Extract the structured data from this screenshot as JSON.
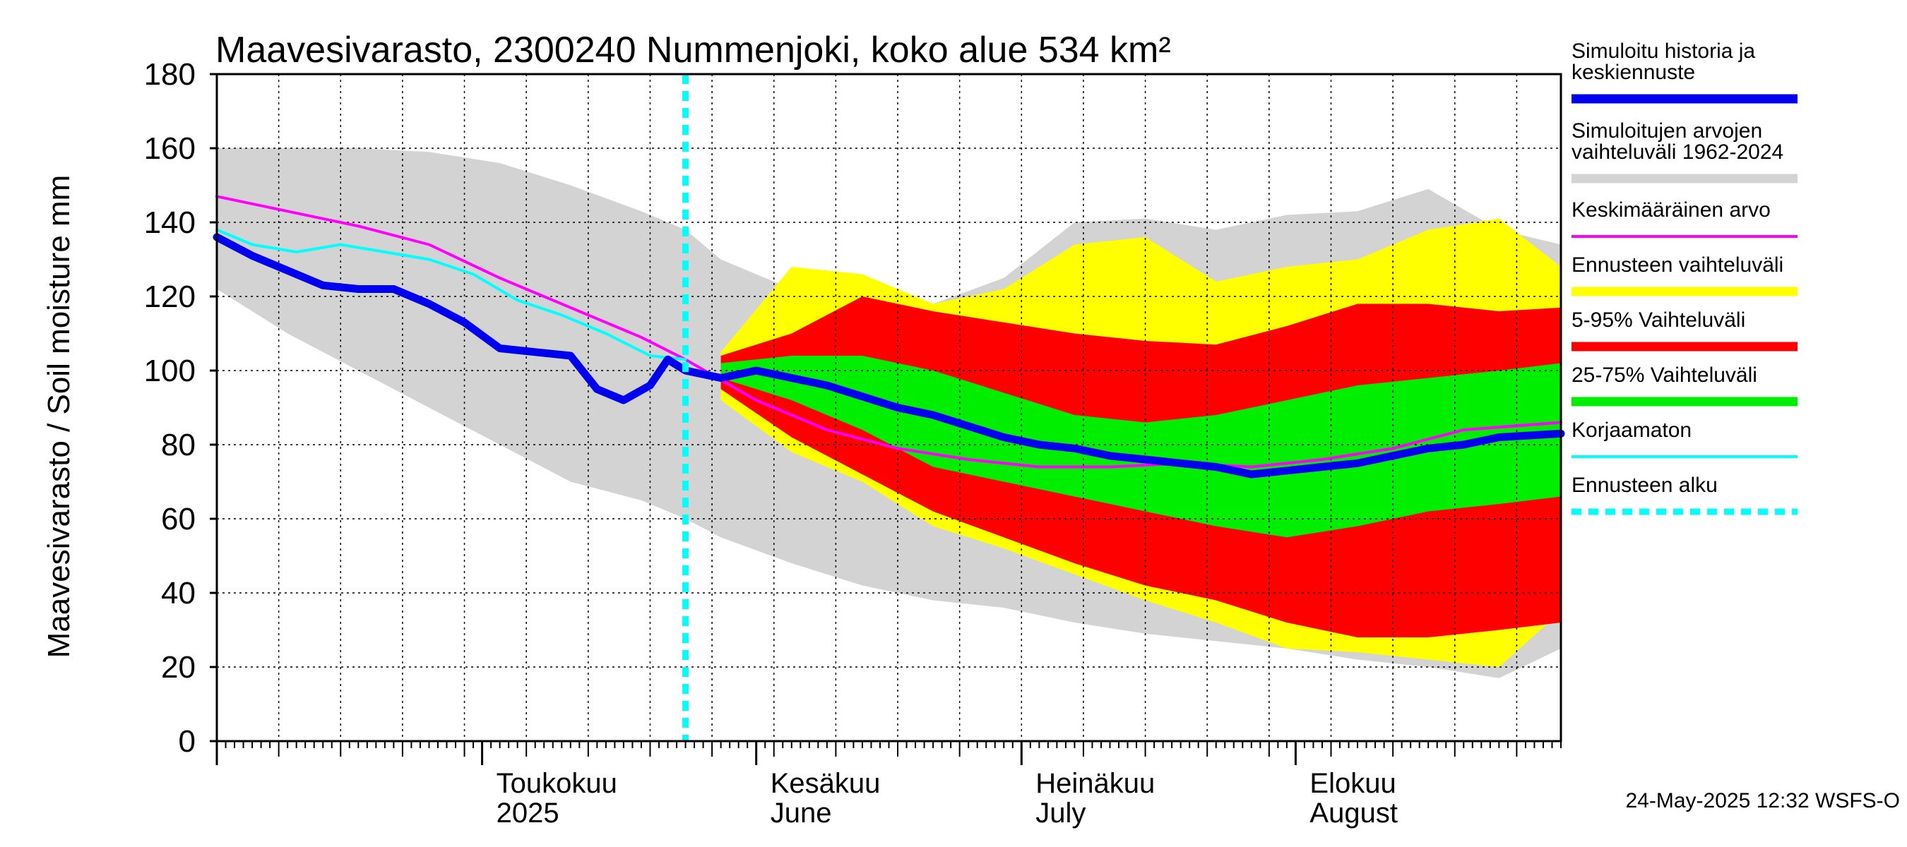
{
  "chart_data": {
    "type": "area",
    "title": "Maavesivarasto, 2300240 Nummenjoki, koko alue 534 km²",
    "ylabel": "Maavesivarasto / Soil moisture   mm",
    "xlabel": "",
    "ylim": [
      0,
      180
    ],
    "yticks": [
      0,
      20,
      40,
      60,
      80,
      100,
      120,
      140,
      160,
      180
    ],
    "x_range": [
      "2025-04-01",
      "2025-08-31"
    ],
    "grid": true,
    "legend_position": "right",
    "month_labels": [
      {
        "fi": "Toukokuu",
        "en": "2025",
        "date": "2025-05-01"
      },
      {
        "fi": "Kesäkuu",
        "en": "June",
        "date": "2025-06-01"
      },
      {
        "fi": "Heinäkuu",
        "en": "July",
        "date": "2025-07-01"
      },
      {
        "fi": "Elokuu",
        "en": "August",
        "date": "2025-08-01"
      }
    ],
    "forecast_start": "2025-05-24",
    "band_dates": [
      "2025-04-01",
      "2025-04-09",
      "2025-04-17",
      "2025-04-25",
      "2025-05-03",
      "2025-05-11",
      "2025-05-19",
      "2025-05-24",
      "2025-05-28",
      "2025-06-05",
      "2025-06-13",
      "2025-06-21",
      "2025-06-29",
      "2025-07-07",
      "2025-07-15",
      "2025-07-23",
      "2025-07-31",
      "2025-08-08",
      "2025-08-16",
      "2025-08-24",
      "2025-08-31"
    ],
    "bands": [
      {
        "name": "Simuloitujen arvojen vaihteluväli 1962-2024",
        "color": "#d3d3d3",
        "lower": [
          122,
          110,
          100,
          90,
          80,
          70,
          65,
          60,
          55,
          48,
          42,
          38,
          36,
          32,
          29,
          27,
          25,
          22,
          20,
          17,
          25
        ],
        "upper": [
          160,
          160,
          160,
          159,
          156,
          150,
          143,
          138,
          130,
          122,
          119,
          118,
          125,
          140,
          141,
          138,
          142,
          143,
          149,
          138,
          134
        ]
      },
      {
        "name": "Ennusteen vaihteluväli",
        "color": "#ffff00",
        "lower": [
          null,
          null,
          null,
          null,
          null,
          null,
          null,
          null,
          92,
          78,
          70,
          58,
          52,
          45,
          38,
          32,
          25,
          24,
          22,
          20,
          35
        ],
        "upper": [
          null,
          null,
          null,
          null,
          null,
          null,
          null,
          null,
          105,
          128,
          126,
          118,
          122,
          134,
          136,
          124,
          128,
          130,
          138,
          141,
          128
        ]
      },
      {
        "name": "5-95% Vaihteluväli",
        "color": "#ff0000",
        "lower": [
          null,
          null,
          null,
          null,
          null,
          null,
          null,
          null,
          95,
          82,
          72,
          62,
          55,
          48,
          42,
          38,
          32,
          28,
          28,
          30,
          32
        ],
        "upper": [
          null,
          null,
          null,
          null,
          null,
          null,
          null,
          null,
          104,
          110,
          120,
          116,
          113,
          110,
          108,
          107,
          112,
          118,
          118,
          116,
          117
        ]
      },
      {
        "name": "25-75% Vaihteluväli",
        "color": "#00ee00",
        "lower": [
          null,
          null,
          null,
          null,
          null,
          null,
          null,
          null,
          98,
          92,
          84,
          74,
          70,
          66,
          62,
          58,
          55,
          58,
          62,
          64,
          66
        ],
        "upper": [
          null,
          null,
          null,
          null,
          null,
          null,
          null,
          null,
          102,
          104,
          104,
          100,
          94,
          88,
          86,
          88,
          92,
          96,
          98,
          100,
          102
        ]
      }
    ],
    "series": [
      {
        "name": "Keskimääräinen arvo",
        "color": "#ff00ff",
        "dates": [
          "2025-04-01",
          "2025-04-09",
          "2025-04-17",
          "2025-04-25",
          "2025-05-03",
          "2025-05-11",
          "2025-05-19",
          "2025-05-24",
          "2025-06-01",
          "2025-06-09",
          "2025-06-17",
          "2025-06-25",
          "2025-07-03",
          "2025-07-11",
          "2025-07-19",
          "2025-07-27",
          "2025-08-04",
          "2025-08-12",
          "2025-08-20",
          "2025-08-31"
        ],
        "values": [
          147,
          143,
          139,
          134,
          125,
          117,
          109,
          103,
          92,
          84,
          79,
          76,
          74,
          74,
          75,
          74,
          76,
          79,
          84,
          86
        ]
      },
      {
        "name": "Korjaamaton",
        "color": "#00ffff",
        "dates": [
          "2025-04-01",
          "2025-04-05",
          "2025-04-10",
          "2025-04-15",
          "2025-04-20",
          "2025-04-25",
          "2025-04-30",
          "2025-05-05",
          "2025-05-10",
          "2025-05-15",
          "2025-05-20",
          "2025-05-24"
        ],
        "values": [
          138,
          134,
          132,
          134,
          132,
          130,
          126,
          119,
          115,
          110,
          104,
          103
        ]
      },
      {
        "name": "Simuloitu historia ja keskiennuste",
        "color": "#0000ee",
        "dates": [
          "2025-04-01",
          "2025-04-05",
          "2025-04-09",
          "2025-04-13",
          "2025-04-17",
          "2025-04-21",
          "2025-04-25",
          "2025-04-29",
          "2025-05-03",
          "2025-05-07",
          "2025-05-11",
          "2025-05-14",
          "2025-05-17",
          "2025-05-20",
          "2025-05-22",
          "2025-05-24",
          "2025-05-28",
          "2025-06-01",
          "2025-06-05",
          "2025-06-09",
          "2025-06-13",
          "2025-06-17",
          "2025-06-21",
          "2025-06-25",
          "2025-06-29",
          "2025-07-03",
          "2025-07-07",
          "2025-07-11",
          "2025-07-15",
          "2025-07-19",
          "2025-07-23",
          "2025-07-27",
          "2025-07-31",
          "2025-08-04",
          "2025-08-08",
          "2025-08-12",
          "2025-08-16",
          "2025-08-20",
          "2025-08-24",
          "2025-08-31"
        ],
        "values": [
          136,
          131,
          127,
          123,
          122,
          122,
          118,
          113,
          106,
          105,
          104,
          95,
          92,
          96,
          103,
          100,
          98,
          100,
          98,
          96,
          93,
          90,
          88,
          85,
          82,
          80,
          79,
          77,
          76,
          75,
          74,
          72,
          73,
          74,
          75,
          77,
          79,
          80,
          82,
          83
        ]
      }
    ],
    "legend": [
      {
        "label": "Simuloitu historia ja keskiennuste",
        "color": "#0000ee",
        "style": "thick"
      },
      {
        "label": "Simuloitujen arvojen vaihteluväli 1962-2024",
        "color": "#d3d3d3",
        "style": "thick"
      },
      {
        "label": "Keskimääräinen arvo",
        "color": "#ff00ff",
        "style": "thin"
      },
      {
        "label": "Ennusteen vaihteluväli",
        "color": "#ffff00",
        "style": "thick"
      },
      {
        "label": "5-95% Vaihteluväli",
        "color": "#ff0000",
        "style": "thick"
      },
      {
        "label": "25-75% Vaihteluväli",
        "color": "#00ee00",
        "style": "thick"
      },
      {
        "label": "Korjaamaton",
        "color": "#00ffff",
        "style": "thin"
      },
      {
        "label": "Ennusteen alku",
        "color": "#00ffff",
        "style": "dashed"
      }
    ],
    "footer": "24-May-2025 12:32 WSFS-O"
  }
}
